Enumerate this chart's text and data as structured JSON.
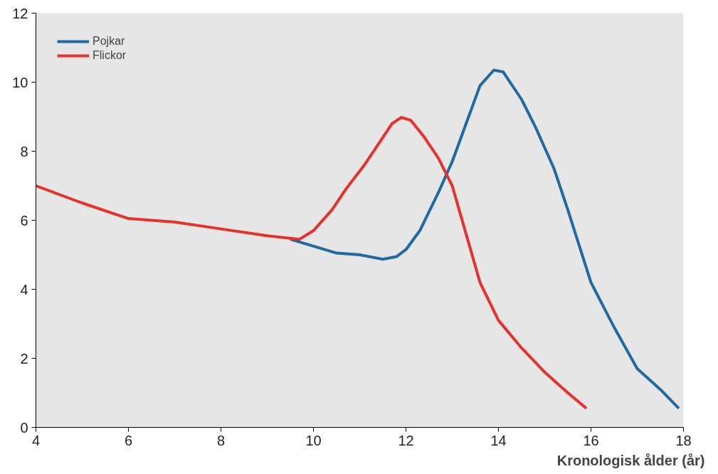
{
  "chart_data": {
    "type": "line",
    "xlabel": "Kronologisk ålder (år)",
    "xlim": [
      4,
      18
    ],
    "xticks": [
      4,
      6,
      8,
      10,
      12,
      14,
      16,
      18
    ],
    "ylim": [
      0,
      12
    ],
    "yticks": [
      0,
      2,
      4,
      6,
      8,
      10,
      12
    ],
    "legend": "top left",
    "marker": "none",
    "line_style": "solid",
    "series": [
      {
        "name": "Pojkar",
        "color": "#1f6aa5",
        "x": [
          9.5,
          10,
          10.5,
          11,
          11.5,
          11.8,
          12,
          12.3,
          12.7,
          13,
          13.3,
          13.6,
          13.9,
          14.1,
          14.5,
          14.8,
          15.2,
          15.5,
          16,
          16.5,
          17,
          17.5,
          17.9
        ],
        "values": [
          5.45,
          5.25,
          5.05,
          5.0,
          4.87,
          4.95,
          5.15,
          5.7,
          6.8,
          7.7,
          8.8,
          9.9,
          10.35,
          10.3,
          9.5,
          8.7,
          7.5,
          6.3,
          4.2,
          2.9,
          1.7,
          1.1,
          0.55
        ]
      },
      {
        "name": "Flickor",
        "color": "#e8312a",
        "x": [
          4,
          5,
          6,
          7,
          8,
          9,
          9.7,
          10,
          10.4,
          10.7,
          11.1,
          11.4,
          11.7,
          11.9,
          12.1,
          12.4,
          12.7,
          13,
          13.3,
          13.6,
          14,
          14.5,
          15,
          15.5,
          15.9
        ],
        "values": [
          7,
          6.5,
          6.05,
          5.95,
          5.75,
          5.55,
          5.45,
          5.7,
          6.3,
          6.9,
          7.6,
          8.2,
          8.8,
          8.98,
          8.9,
          8.4,
          7.8,
          7.0,
          5.6,
          4.2,
          3.1,
          2.3,
          1.6,
          1.0,
          0.55
        ]
      }
    ]
  }
}
